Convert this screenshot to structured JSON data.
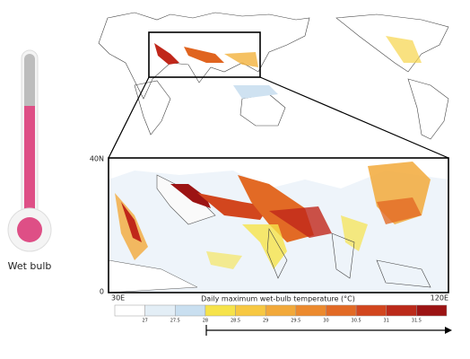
{
  "caption": "Wet bulb",
  "map": {
    "lat_labels": [
      "40N",
      "0"
    ],
    "lon_labels": [
      "30E",
      "120E"
    ]
  },
  "colorbar": {
    "title": "Daily maximum wet-bulb temperature (°C)",
    "ticks": [
      "27",
      "27.5",
      "28",
      "28.5",
      "29",
      "29.5",
      "30",
      "30.5",
      "31",
      "31.5"
    ],
    "colors": [
      "#ffffff",
      "#e3eef6",
      "#c9dff0",
      "#f6e34a",
      "#f7c842",
      "#f2a93a",
      "#ec8a2e",
      "#e26a25",
      "#d2461e",
      "#bb2a1a",
      "#9c1414"
    ]
  }
}
